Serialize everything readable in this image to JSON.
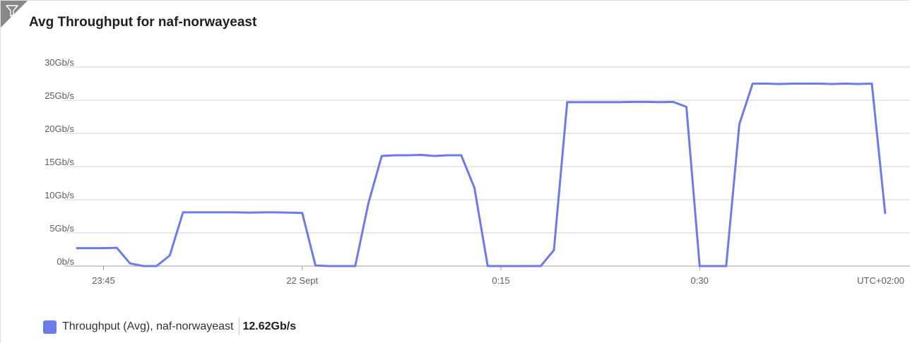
{
  "title": "Avg Throughput for naf-norwayeast",
  "filter_icon": "filter-icon",
  "colors": {
    "series": "#6b7be8",
    "grid": "#d2d0ce",
    "corner": "#8a8886"
  },
  "chart_data": {
    "type": "line",
    "title": "Avg Throughput for naf-norwayeast",
    "xlabel": "",
    "ylabel": "",
    "ylim": [
      0,
      30
    ],
    "xlim": [
      "23:43",
      "00:38"
    ],
    "grid": true,
    "legend_position": "bottom-left",
    "yticks": [
      {
        "value": 0,
        "label": "0b/s"
      },
      {
        "value": 5,
        "label": "5Gb/s"
      },
      {
        "value": 10,
        "label": "10Gb/s"
      },
      {
        "value": 15,
        "label": "15Gb/s"
      },
      {
        "value": 20,
        "label": "20Gb/s"
      },
      {
        "value": 25,
        "label": "25Gb/s"
      },
      {
        "value": 30,
        "label": "30Gb/s"
      }
    ],
    "xticks": [
      {
        "value": "23:45",
        "label": "23:45"
      },
      {
        "value": "00:00",
        "label": "22 Sept"
      },
      {
        "value": "00:15",
        "label": "0:15"
      },
      {
        "value": "00:30",
        "label": "0:30"
      }
    ],
    "timezone_label": "UTC+02:00",
    "series": [
      {
        "name": "Throughput (Avg), naf-norwayeast",
        "unit": "Gb/s",
        "summary": "12.62Gb/s",
        "points": [
          [
            "23:43",
            2.7
          ],
          [
            "23:44",
            2.7
          ],
          [
            "23:45",
            2.7
          ],
          [
            "23:46",
            2.75
          ],
          [
            "23:47",
            0.4
          ],
          [
            "23:48",
            0.0
          ],
          [
            "23:49",
            0.0
          ],
          [
            "23:50",
            1.6
          ],
          [
            "23:51",
            8.1
          ],
          [
            "23:52",
            8.1
          ],
          [
            "23:53",
            8.1
          ],
          [
            "23:54",
            8.1
          ],
          [
            "23:55",
            8.1
          ],
          [
            "23:56",
            8.05
          ],
          [
            "23:57",
            8.1
          ],
          [
            "23:58",
            8.1
          ],
          [
            "23:59",
            8.05
          ],
          [
            "00:00",
            8.0
          ],
          [
            "00:01",
            0.1
          ],
          [
            "00:02",
            0.0
          ],
          [
            "00:03",
            0.0
          ],
          [
            "00:04",
            0.0
          ],
          [
            "00:05",
            9.5
          ],
          [
            "00:06",
            16.6
          ],
          [
            "00:07",
            16.7
          ],
          [
            "00:08",
            16.7
          ],
          [
            "00:09",
            16.75
          ],
          [
            "00:10",
            16.6
          ],
          [
            "00:11",
            16.7
          ],
          [
            "00:12",
            16.7
          ],
          [
            "00:13",
            11.8
          ],
          [
            "00:14",
            0.0
          ],
          [
            "00:15",
            0.0
          ],
          [
            "00:16",
            0.0
          ],
          [
            "00:17",
            0.0
          ],
          [
            "00:18",
            0.0
          ],
          [
            "00:19",
            2.4
          ],
          [
            "00:20",
            24.7
          ],
          [
            "00:21",
            24.7
          ],
          [
            "00:22",
            24.7
          ],
          [
            "00:23",
            24.7
          ],
          [
            "00:24",
            24.7
          ],
          [
            "00:25",
            24.75
          ],
          [
            "00:26",
            24.75
          ],
          [
            "00:27",
            24.7
          ],
          [
            "00:28",
            24.75
          ],
          [
            "00:29",
            24.0
          ],
          [
            "00:30",
            0.0
          ],
          [
            "00:31",
            0.0
          ],
          [
            "00:32",
            0.0
          ],
          [
            "00:33",
            21.4
          ],
          [
            "00:34",
            27.5
          ],
          [
            "00:35",
            27.5
          ],
          [
            "00:36",
            27.45
          ],
          [
            "00:37",
            27.5
          ],
          [
            "00:38",
            27.5
          ]
        ],
        "tail_points": [
          [
            "00:39",
            27.5
          ],
          [
            "00:40",
            27.45
          ],
          [
            "00:41",
            27.5
          ],
          [
            "00:42",
            27.45
          ],
          [
            "00:43",
            27.5
          ],
          [
            "00:44",
            8.0
          ]
        ]
      }
    ]
  },
  "legend": {
    "label": "Throughput (Avg), naf-norwayeast",
    "value": "12.62Gb/s"
  }
}
